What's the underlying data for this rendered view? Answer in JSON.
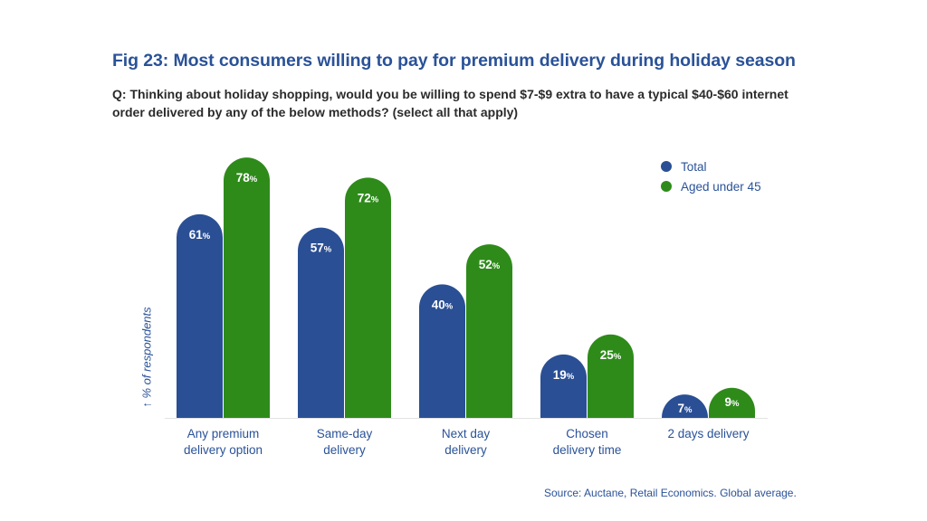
{
  "title": "Fig 23: Most consumers willing to pay for premium delivery during holiday season",
  "subtitle": "Q: Thinking about holiday shopping, would you be willing to spend $7-$9 extra to have a typical $40-$60 internet order delivered by any of the below methods? (select all that apply)",
  "source": "Source: Auctane, Retail Economics. Global average.",
  "colors": {
    "total": "#2a4f94",
    "under45": "#2e8b1a",
    "text_blue": "#2a5298"
  },
  "chart_data": {
    "type": "bar",
    "title": "Fig 23: Most consumers willing to pay for premium delivery during holiday season",
    "xlabel": "",
    "ylabel": "↑ % of respondents",
    "ylim": [
      0,
      80
    ],
    "grid": false,
    "legend_position": "top-right",
    "categories": [
      "Any premium delivery option",
      "Same-day delivery",
      "Next day delivery",
      "Chosen delivery time",
      "2 days delivery"
    ],
    "category_lines": [
      [
        "Any premium",
        "delivery option"
      ],
      [
        "Same-day",
        "delivery"
      ],
      [
        "Next day",
        "delivery"
      ],
      [
        "Chosen",
        "delivery time"
      ],
      [
        "2 days delivery"
      ]
    ],
    "series": [
      {
        "name": "Total",
        "color": "#2a4f94",
        "values": [
          61,
          57,
          40,
          19,
          7
        ]
      },
      {
        "name": "Aged under 45",
        "color": "#2e8b1a",
        "values": [
          78,
          72,
          52,
          25,
          9
        ]
      }
    ],
    "value_suffix": "%"
  }
}
